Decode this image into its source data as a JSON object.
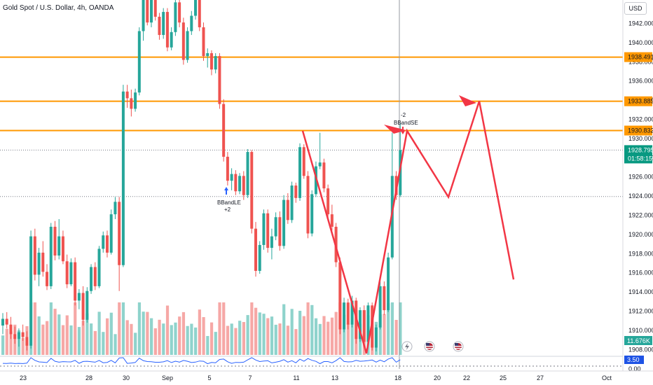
{
  "header": {
    "symbol_title": "Gold Spot / U.S. Dollar, 4h, OANDA",
    "currency_button": "USD"
  },
  "colors": {
    "up": "#26a69a",
    "down": "#ef5350",
    "vol_up": "#8fd3cc",
    "vol_down": "#f6a8a6",
    "level_line": "#ff9800",
    "projection": "#f23645",
    "current_price_tag": "#089981",
    "volume_tag": "#26a69a",
    "oscillator": "#2962ff"
  },
  "chart_data": {
    "type": "candlestick",
    "title": "Gold Spot / U.S. Dollar, 4h, OANDA",
    "ylim": [
      1907.5,
      1945.5
    ],
    "y_ticks": [
      "1942.000",
      "1940.000",
      "1938.000",
      "1936.000",
      "1934.000",
      "1932.000",
      "1930.000",
      "1928.000",
      "1926.000",
      "1924.000",
      "1922.000",
      "1920.000",
      "1918.000",
      "1916.000",
      "1914.000",
      "1912.000",
      "1910.000",
      "1908.000"
    ],
    "x_ticks": [
      "23",
      "28",
      "30",
      "Sep",
      "5",
      "7",
      "11",
      "13",
      "18",
      "20",
      "22",
      "25",
      "27",
      "Oct"
    ],
    "levels": [
      {
        "label": "1938.491",
        "value": 1938.491
      },
      {
        "label": "1933.885",
        "value": 1933.885
      },
      {
        "label": "1930.832",
        "value": 1930.832
      }
    ],
    "dotted_levels": [
      1928.795,
      1923.95
    ],
    "current_price": {
      "label": "1928.795",
      "value": 1928.795,
      "countdown": "01:58:15"
    },
    "volume_tag": "11.676K",
    "oscillator": {
      "value_label": "3.50",
      "zero_label": "0.00"
    },
    "signals": [
      {
        "name": "BBandLE",
        "qty": "+2",
        "side": "long"
      },
      {
        "name": "BBandSE",
        "qty": "-2",
        "side": "short"
      }
    ],
    "candles": [
      [
        1910.5,
        1911.8,
        1909.6,
        1911.2
      ],
      [
        1911.2,
        1911.9,
        1910.2,
        1910.6
      ],
      [
        1910.6,
        1911.4,
        1909.1,
        1909.6
      ],
      [
        1909.6,
        1910.4,
        1908.6,
        1909.1
      ],
      [
        1909.1,
        1910.2,
        1908.3,
        1909.8
      ],
      [
        1909.8,
        1910.6,
        1908.9,
        1909.3
      ],
      [
        1909.3,
        1909.9,
        1907.9,
        1908.4
      ],
      [
        1908.4,
        1920.4,
        1908.1,
        1919.8
      ],
      [
        1919.8,
        1920.6,
        1915.2,
        1915.8
      ],
      [
        1915.8,
        1918.6,
        1914.6,
        1918.1
      ],
      [
        1918.1,
        1919.3,
        1915.6,
        1916.1
      ],
      [
        1916.1,
        1916.9,
        1914.2,
        1914.6
      ],
      [
        1914.6,
        1921.2,
        1914.3,
        1920.8
      ],
      [
        1920.8,
        1921.4,
        1917.3,
        1917.8
      ],
      [
        1917.8,
        1921.6,
        1917.4,
        1919.8
      ],
      [
        1919.8,
        1920.4,
        1916.9,
        1917.2
      ],
      [
        1917.2,
        1917.9,
        1914.4,
        1914.8
      ],
      [
        1914.8,
        1917.5,
        1914.6,
        1917.1
      ],
      [
        1917.1,
        1917.6,
        1912.6,
        1913.1
      ],
      [
        1913.1,
        1914.3,
        1912.2,
        1913.9
      ],
      [
        1913.9,
        1914.6,
        1910.5,
        1911.1
      ],
      [
        1911.1,
        1914.5,
        1910.8,
        1914.1
      ],
      [
        1914.1,
        1916.9,
        1913.8,
        1916.6
      ],
      [
        1916.6,
        1917.1,
        1914.2,
        1914.6
      ],
      [
        1914.6,
        1918.8,
        1914.4,
        1918.5
      ],
      [
        1918.5,
        1920.3,
        1918.1,
        1919.9
      ],
      [
        1919.9,
        1920.4,
        1917.6,
        1918.1
      ],
      [
        1918.1,
        1922.6,
        1917.9,
        1922.1
      ],
      [
        1922.1,
        1923.9,
        1921.6,
        1923.4
      ],
      [
        1923.4,
        1923.9,
        1914.1,
        1916.8
      ],
      [
        1916.8,
        1935.6,
        1916.6,
        1934.9
      ],
      [
        1934.9,
        1935.6,
        1933.2,
        1934.2
      ],
      [
        1934.2,
        1935.1,
        1932.3,
        1933.1
      ],
      [
        1933.1,
        1935.2,
        1932.8,
        1934.8
      ],
      [
        1934.8,
        1941.6,
        1934.5,
        1941.2
      ],
      [
        1941.2,
        1945.4,
        1940.2,
        1944.8
      ],
      [
        1944.8,
        1945.4,
        1941.8,
        1942.1
      ],
      [
        1942.1,
        1945.2,
        1941.6,
        1944.6
      ],
      [
        1944.6,
        1945.3,
        1942.3,
        1942.7
      ],
      [
        1942.7,
        1943.1,
        1940.3,
        1940.8
      ],
      [
        1940.8,
        1943.6,
        1940.4,
        1943.2
      ],
      [
        1943.2,
        1943.6,
        1939.1,
        1939.5
      ],
      [
        1939.5,
        1941.6,
        1939.2,
        1941.1
      ],
      [
        1941.1,
        1944.5,
        1940.7,
        1944.2
      ],
      [
        1944.2,
        1944.8,
        1941.6,
        1942.1
      ],
      [
        1942.1,
        1942.6,
        1937.7,
        1938.2
      ],
      [
        1938.2,
        1941.6,
        1937.9,
        1941.2
      ],
      [
        1941.2,
        1943.3,
        1940.8,
        1942.8
      ],
      [
        1942.8,
        1945.3,
        1942.4,
        1944.9
      ],
      [
        1944.9,
        1945.4,
        1941.2,
        1941.6
      ],
      [
        1941.6,
        1942.1,
        1938.1,
        1938.6
      ],
      [
        1938.6,
        1939.4,
        1937.4,
        1938.9
      ],
      [
        1938.9,
        1939.2,
        1936.6,
        1937.2
      ],
      [
        1937.2,
        1938.9,
        1936.8,
        1938.6
      ],
      [
        1938.6,
        1938.9,
        1933.1,
        1933.6
      ],
      [
        1933.6,
        1934.1,
        1927.6,
        1928.1
      ],
      [
        1928.1,
        1928.6,
        1925.1,
        1925.6
      ],
      [
        1925.6,
        1926.9,
        1924.6,
        1926.3
      ],
      [
        1926.3,
        1926.7,
        1924.1,
        1924.5
      ],
      [
        1924.5,
        1926.4,
        1924.2,
        1926.1
      ],
      [
        1926.1,
        1926.6,
        1923.6,
        1924.1
      ],
      [
        1924.1,
        1928.9,
        1923.8,
        1928.6
      ],
      [
        1928.6,
        1928.8,
        1920.1,
        1920.6
      ],
      [
        1920.6,
        1921.3,
        1915.6,
        1916.2
      ],
      [
        1916.2,
        1919.3,
        1915.9,
        1918.9
      ],
      [
        1918.9,
        1922.6,
        1918.4,
        1922.2
      ],
      [
        1922.2,
        1922.6,
        1918.1,
        1918.6
      ],
      [
        1918.6,
        1920.6,
        1917.4,
        1919.8
      ],
      [
        1919.8,
        1922.3,
        1919.4,
        1921.8
      ],
      [
        1921.8,
        1922.4,
        1918.3,
        1918.8
      ],
      [
        1918.8,
        1924.1,
        1918.5,
        1923.6
      ],
      [
        1923.6,
        1924.3,
        1921.1,
        1921.5
      ],
      [
        1921.5,
        1925.5,
        1921.2,
        1925.1
      ],
      [
        1925.1,
        1925.4,
        1923.3,
        1923.8
      ],
      [
        1923.8,
        1929.5,
        1923.5,
        1929.1
      ],
      [
        1929.1,
        1929.4,
        1925.8,
        1926.1
      ],
      [
        1926.1,
        1926.6,
        1919.6,
        1920.1
      ],
      [
        1920.1,
        1924.6,
        1919.8,
        1924.2
      ],
      [
        1924.2,
        1927.6,
        1923.9,
        1927.1
      ],
      [
        1927.1,
        1930.6,
        1926.8,
        1927.5
      ],
      [
        1927.5,
        1927.9,
        1924.4,
        1924.8
      ],
      [
        1924.8,
        1925.2,
        1921.6,
        1922.1
      ],
      [
        1922.1,
        1923.1,
        1920.4,
        1920.8
      ],
      [
        1920.8,
        1921.2,
        1916.6,
        1917.1
      ],
      [
        1917.1,
        1917.6,
        1909.6,
        1910.1
      ],
      [
        1910.1,
        1913.4,
        1909.8,
        1912.9
      ],
      [
        1912.9,
        1913.3,
        1910.1,
        1910.6
      ],
      [
        1910.6,
        1913.6,
        1910.3,
        1913.1
      ],
      [
        1913.1,
        1913.4,
        1908.6,
        1909.1
      ],
      [
        1909.1,
        1912.4,
        1908.8,
        1912.1
      ],
      [
        1912.1,
        1912.6,
        1908.4,
        1908.8
      ],
      [
        1908.8,
        1912.9,
        1908.5,
        1912.6
      ],
      [
        1912.6,
        1912.9,
        1907.9,
        1908.2
      ],
      [
        1908.2,
        1910.6,
        1907.8,
        1910.3
      ],
      [
        1910.3,
        1915.1,
        1910.1,
        1914.6
      ],
      [
        1914.6,
        1915.1,
        1911.6,
        1912.1
      ],
      [
        1912.1,
        1918.1,
        1911.9,
        1917.6
      ],
      [
        1917.6,
        1930.6,
        1917.4,
        1926.1
      ],
      [
        1926.1,
        1926.6,
        1923.6,
        1924.1
      ],
      [
        1924.1,
        1931.6,
        1923.9,
        1928.8
      ]
    ]
  }
}
